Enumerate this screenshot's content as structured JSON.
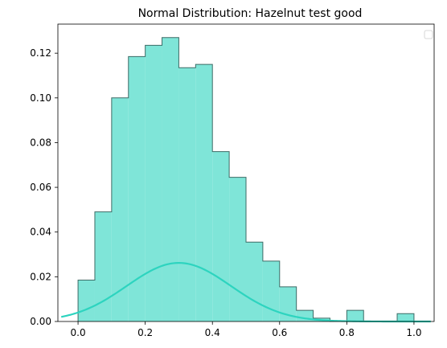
{
  "chart_data": {
    "type": "bar",
    "title": "Normal Distribution: Hazelnut test good",
    "xlabel": "",
    "ylabel": "",
    "xlim": [
      -0.06,
      1.06
    ],
    "ylim": [
      0,
      0.133
    ],
    "grid": false,
    "legend": {
      "placement": "top-right",
      "entries": []
    },
    "x_ticks": [
      0.0,
      0.2,
      0.4,
      0.6,
      0.8,
      1.0
    ],
    "x_tick_labels": [
      "0.0",
      "0.2",
      "0.4",
      "0.6",
      "0.8",
      "1.0"
    ],
    "y_ticks": [
      0.0,
      0.02,
      0.04,
      0.06,
      0.08,
      0.1,
      0.12
    ],
    "y_tick_labels": [
      "0.00",
      "0.02",
      "0.04",
      "0.06",
      "0.08",
      "0.10",
      "0.12"
    ],
    "histogram": {
      "bin_edges": [
        0.0,
        0.05,
        0.1,
        0.15,
        0.2,
        0.25,
        0.3,
        0.35,
        0.4,
        0.45,
        0.5,
        0.55,
        0.6,
        0.65,
        0.7,
        0.75,
        0.8,
        0.85,
        0.9,
        0.95,
        1.0
      ],
      "values": [
        0.0185,
        0.049,
        0.1,
        0.1185,
        0.1235,
        0.127,
        0.1135,
        0.115,
        0.076,
        0.0645,
        0.0355,
        0.027,
        0.0155,
        0.005,
        0.0015,
        0.0,
        0.005,
        0.0,
        0.0,
        0.0035
      ],
      "fill_color": "#7fe5d8",
      "edge_color": "#3d6b66"
    },
    "curve": {
      "type": "normal-pdf",
      "x_range": [
        -0.05,
        1.05
      ],
      "mean": 0.3,
      "peak": 0.0262,
      "sigma": 0.155,
      "color": "#2dd4bf"
    }
  }
}
